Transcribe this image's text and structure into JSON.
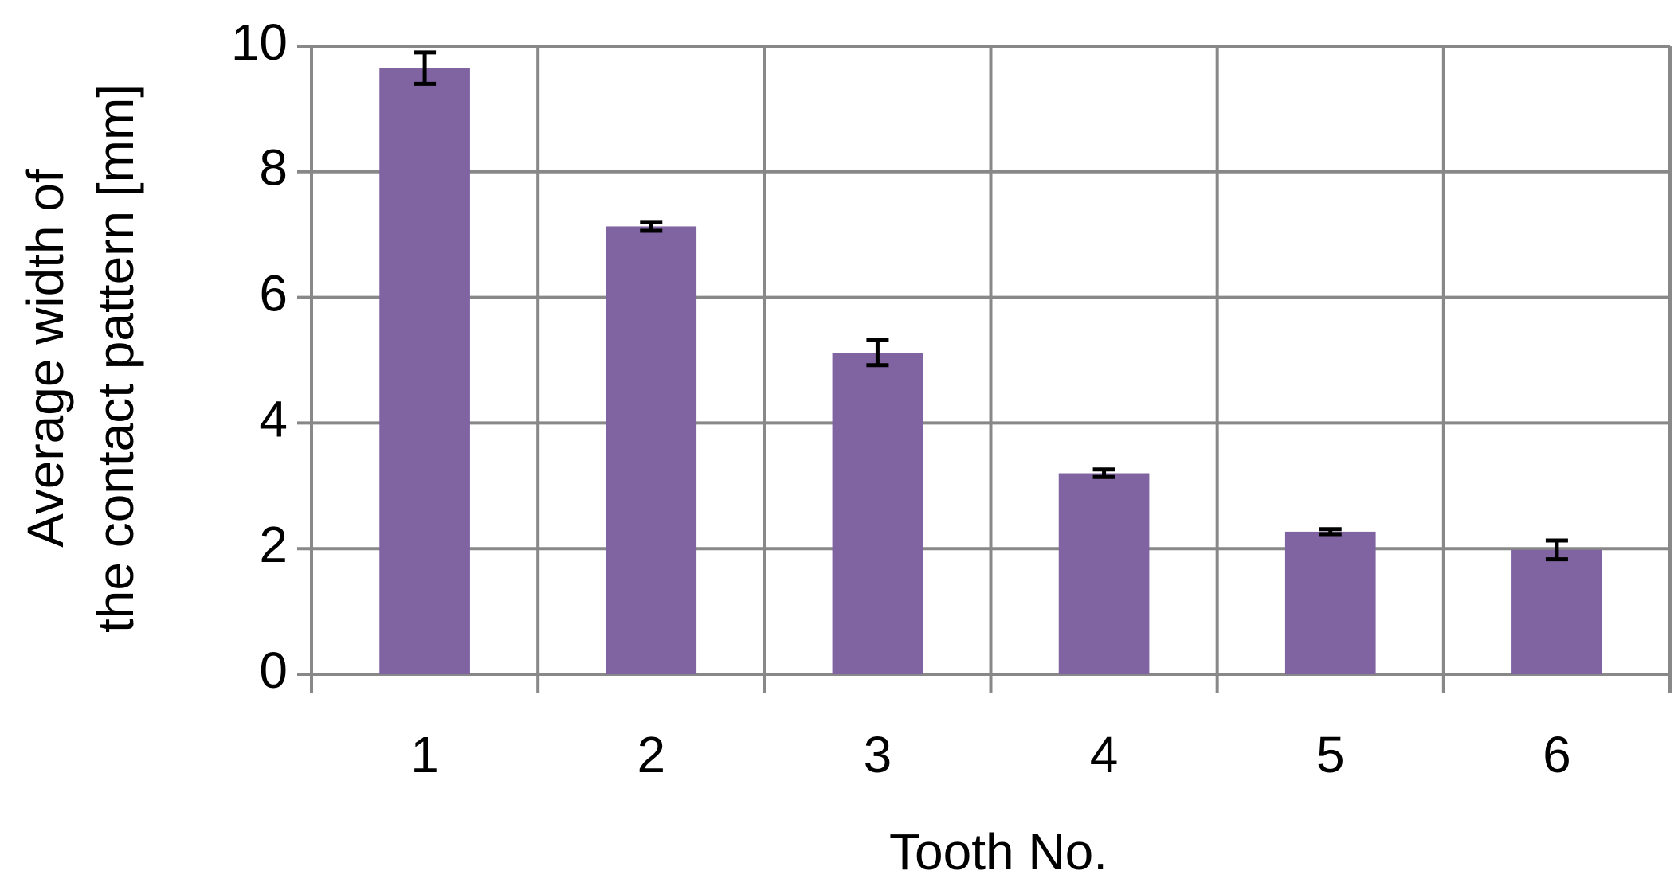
{
  "chart_data": {
    "type": "bar",
    "ylabel": [
      "Average width of",
      "the contact pattern [mm]"
    ],
    "xlabel": "Tooth No.",
    "categories": [
      "1",
      "2",
      "3",
      "4",
      "5",
      "6"
    ],
    "values": [
      9.65,
      7.13,
      5.12,
      3.2,
      2.27,
      1.98
    ],
    "errors": [
      0.25,
      0.07,
      0.2,
      0.06,
      0.04,
      0.15
    ],
    "color": "#8064a2",
    "ylim": [
      0,
      10
    ],
    "yticks": [
      0,
      2,
      4,
      6,
      8,
      10
    ],
    "grid": true
  }
}
